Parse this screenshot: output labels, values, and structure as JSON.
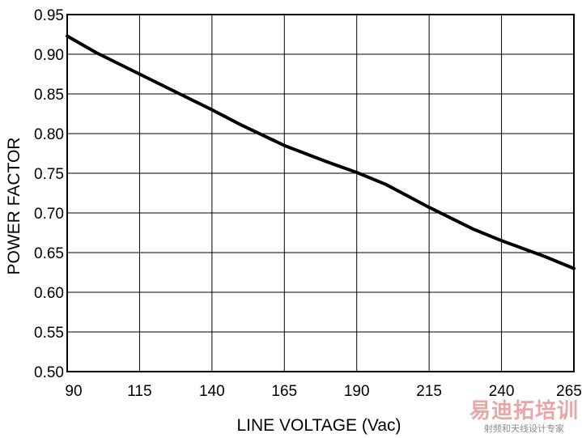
{
  "chart_data": {
    "type": "line",
    "xlabel": "LINE VOLTAGE (Vac)",
    "ylabel": "POWER FACTOR",
    "xlim": [
      90,
      265
    ],
    "ylim": [
      0.5,
      0.95
    ],
    "x_ticks": [
      "90",
      "115",
      "140",
      "165",
      "190",
      "215",
      "240",
      "265"
    ],
    "y_ticks": [
      "0.50",
      "0.55",
      "0.60",
      "0.65",
      "0.70",
      "0.75",
      "0.80",
      "0.85",
      "0.90",
      "0.95"
    ],
    "grid": true,
    "series": [
      {
        "x": [
          90,
          100,
          115,
          130,
          140,
          150,
          165,
          180,
          190,
          200,
          215,
          230,
          240,
          255,
          265
        ],
        "y": [
          0.923,
          0.902,
          0.875,
          0.848,
          0.83,
          0.811,
          0.785,
          0.764,
          0.751,
          0.736,
          0.707,
          0.68,
          0.665,
          0.645,
          0.63
        ]
      }
    ],
    "line_color": "#000000"
  },
  "watermark": {
    "main": "易迪拓培训",
    "sub": "射频和天线设计专家"
  }
}
